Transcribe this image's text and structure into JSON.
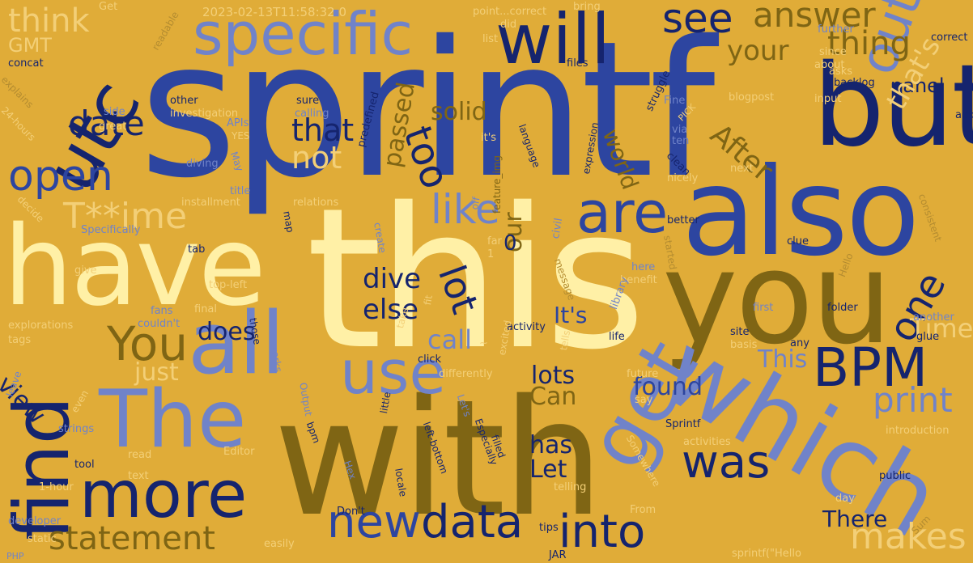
{
  "timestamp": "2023-02-13T11:58:32.0",
  "words": {
    "sprintf": "sprintf",
    "this": "this",
    "with": "with",
    "have": "have",
    "also": "also",
    "you": "you",
    "which": "which",
    "all": "all",
    "but": "but",
    "will": "will",
    "specific": "specific",
    "utc": "utc",
    "the": "The",
    "find": "find",
    "use": "use",
    "get": "get",
    "more": "more",
    "data": "data",
    "new": "new",
    "into": "into",
    "bpm": "BPM",
    "are": "are",
    "out": "out",
    "see": "see",
    "open": "open",
    "was": "was",
    "answer": "answer",
    "thing": "thing",
    "date": "date",
    "like": "like",
    "too": "too",
    "lot": "lot",
    "you_cap": "You",
    "statement": "statement",
    "time_masked": "T**ime",
    "one": "one",
    "print": "print",
    "makes": "makes",
    "think": "think",
    "panel": "panel",
    "that": "that",
    "not": "not",
    "your": "your",
    "after": "After",
    "thats": "that's",
    "solid": "solid",
    "passed": "passed",
    "dive": "dive",
    "else": "else",
    "lots": "lots",
    "found": "found",
    "time_cap": "Time",
    "does": "does",
    "view": "view",
    "just": "just",
    "this_cap": "This",
    "its": "It's",
    "call": "call",
    "can": "Can",
    "has": "has",
    "let": "Let",
    "there": "There",
    "our": "our",
    "world": "world",
    "gmt": "GMT",
    "zero": "0",
    "get_small": "Get",
    "readable": "readable",
    "point_correct": "point...correct",
    "bring": "bring",
    "did": "did",
    "list": "list",
    "files": "files",
    "since": "since",
    "about": "about",
    "further": "further",
    "correct": "correct",
    "concat": "concat",
    "explains": "explains",
    "other": "other",
    "sure": "sure",
    "investigation": "investigation",
    "calling": "calling",
    "side": "side",
    "great": "great",
    "apis": "APIs",
    "yes": "YES",
    "predefined": "predefined",
    "its_lower": "it's",
    "feature_img": "feature_img",
    "language": "language",
    "expression": "expression",
    "struggle": "struggle",
    "asks": "asks",
    "backlog": "backlog",
    "blogpost": "blogpost",
    "input": "input",
    "fine": "Fine",
    "pick": "PICK",
    "add": "add",
    "hours24": "24-hours",
    "via": "via",
    "ten": "ten",
    "clean": "clean",
    "next": "next",
    "diving": "diving",
    "may": "May",
    "title": "title",
    "installment": "installment",
    "relations": "relations",
    "decide": "decide",
    "map": "map",
    "nicely": "nicely",
    "consistent": "consistent",
    "specifically": "Specifically",
    "create": "create",
    "far": "far",
    "one_num": "1",
    "civil": "civil",
    "better": "better",
    "clue": "clue",
    "tab": "tab",
    "started": "started",
    "off": "off",
    "give": "give",
    "top_left": "top-left",
    "here": "here",
    "hello": "Hello",
    "benefit": "benefit",
    "message": "message",
    "final": "final",
    "first": "first",
    "folder": "folder",
    "fans": "fans",
    "explorations": "explorations",
    "couldnt": "couldn't",
    "activity": "activity",
    "library": "library",
    "another": "another",
    "tags": "tags",
    "those": "those",
    "take": "take",
    "fit": "fit",
    "excited": "excited",
    "site": "site",
    "basis": "basis",
    "any": "any",
    "glue": "glue",
    "life": "life",
    "tells": "tells",
    "works": "works",
    "click": "click",
    "differently": "differently",
    "leave": "leave",
    "even": "even",
    "lets": "Let's",
    "output": "Output",
    "strings": "strings",
    "future": "future",
    "say": "say",
    "sprintf_cap": "Sprintf",
    "especially": "Especially",
    "editor": "Editor",
    "bpm_lower": "bpm",
    "little": "little",
    "activities": "activities",
    "introduction": "introduction",
    "read": "read",
    "left_bottom": "left-bottom",
    "filled": "filled",
    "somewhere": "Somewhere",
    "tool": "tool",
    "text": "text",
    "hex": "Hex",
    "telling": "telling",
    "public": "public",
    "hour1": "1-hour",
    "locale": "locale",
    "day": "day",
    "developer": "developer",
    "dont": "Don't",
    "from": "From",
    "static": "static",
    "easily": "easily",
    "tips": "tips",
    "sum": "Sum",
    "php": "PHP",
    "jar": "JAR",
    "sprintf_hello": "sprintf(\"Hello",
    "tilde": "~"
  }
}
